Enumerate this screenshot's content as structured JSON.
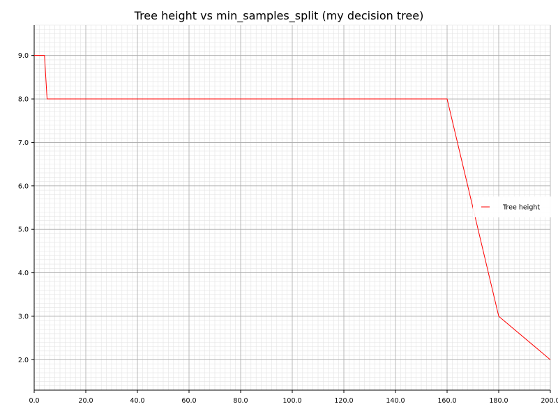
{
  "chart_data": {
    "type": "line",
    "title": "Tree height vs min_samples_split (my decision tree)",
    "xlabel": "",
    "ylabel": "",
    "xlim": [
      0,
      200
    ],
    "ylim": [
      1.3,
      9.7
    ],
    "x_ticks": [
      0,
      20,
      40,
      60,
      80,
      100,
      120,
      140,
      160,
      180,
      200
    ],
    "x_tick_labels": [
      "0.0",
      "20.0",
      "40.0",
      "60.0",
      "80.0",
      "100.0",
      "120.0",
      "140.0",
      "160.0",
      "180.0",
      "200.0"
    ],
    "y_ticks": [
      2,
      3,
      4,
      5,
      6,
      7,
      8,
      9
    ],
    "y_tick_labels": [
      "2.0",
      "3.0",
      "4.0",
      "5.0",
      "6.0",
      "7.0",
      "8.0",
      "9.0"
    ],
    "grid": "major and minor",
    "legend_position": "center-right",
    "series": [
      {
        "name": "Tree height",
        "color": "#ff0000",
        "x": [
          0,
          2,
          3,
          4,
          5,
          160,
          180,
          200
        ],
        "y": [
          9,
          9,
          9,
          9,
          8,
          8,
          3,
          2
        ]
      }
    ]
  }
}
